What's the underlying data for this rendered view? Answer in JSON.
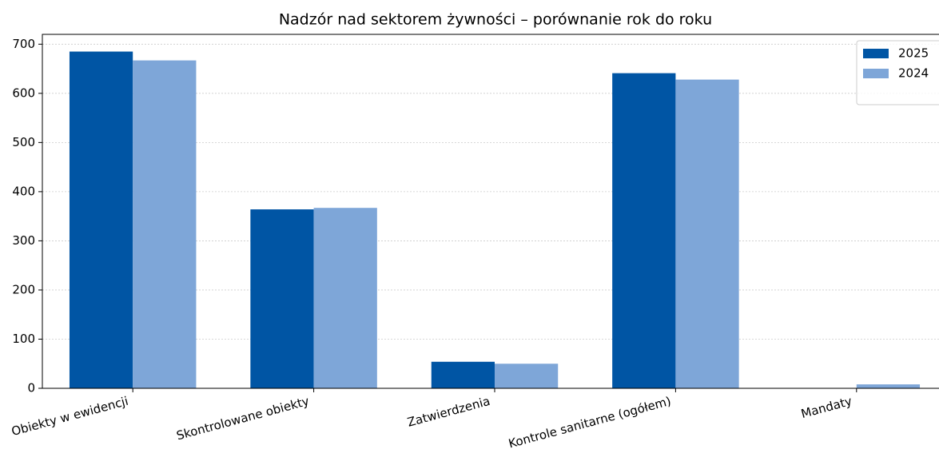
{
  "chart_data": {
    "type": "bar",
    "title": "Nadzór nad sektorem żywności – porównanie rok do roku",
    "categories": [
      "Obiekty w ewidencji",
      "Skontrolowane obiekty",
      "Zatwierdzenia",
      "Kontrole sanitarne (ogółem)",
      "Mandaty"
    ],
    "series": [
      {
        "name": "2025",
        "color": "#0055a4",
        "values": [
          685,
          364,
          54,
          641,
          0
        ]
      },
      {
        "name": "2024",
        "color": "#7ea6d8",
        "values": [
          667,
          367,
          50,
          628,
          8
        ]
      }
    ],
    "ylim": [
      0,
      720
    ],
    "yticks": [
      0,
      100,
      200,
      300,
      400,
      500,
      600,
      700
    ],
    "grid": true,
    "legend": "upper right"
  }
}
